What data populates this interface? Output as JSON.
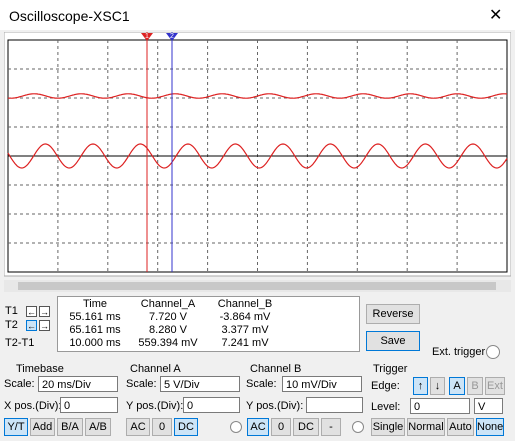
{
  "window": {
    "title": "Oscilloscope-XSC1"
  },
  "cursors": {
    "t1": "1",
    "t2": "2"
  },
  "readout": {
    "headers": [
      "Time",
      "Channel_A",
      "Channel_B"
    ],
    "rows": [
      {
        "label": "T1",
        "time": "55.161 ms",
        "a": "7.720 V",
        "b": "-3.864 mV"
      },
      {
        "label": "T2",
        "time": "65.161 ms",
        "a": "8.280 V",
        "b": "3.377 mV"
      },
      {
        "label": "T2-T1",
        "time": "10.000 ms",
        "a": "559.394 mV",
        "b": "7.241 mV"
      }
    ]
  },
  "buttons": {
    "reverse": "Reverse",
    "save": "Save",
    "ext_trigger": "Ext. trigger"
  },
  "timebase": {
    "title": "Timebase",
    "scale_label": "Scale:",
    "scale": "20 ms/Div",
    "xpos_label": "X pos.(Div):",
    "xpos": "0",
    "modes": [
      "Y/T",
      "Add",
      "B/A",
      "A/B"
    ]
  },
  "channel_a": {
    "title": "Channel A",
    "scale_label": "Scale:",
    "scale": "5 V/Div",
    "ypos_label": "Y pos.(Div):",
    "ypos": "0",
    "coupling": [
      "AC",
      "0",
      "DC"
    ]
  },
  "channel_b": {
    "title": "Channel B",
    "scale_label": "Scale:",
    "scale": "10 mV/Div",
    "ypos_label": "Y pos.(Div):",
    "coupling": [
      "AC",
      "0",
      "DC",
      "-"
    ]
  },
  "trigger": {
    "title": "Trigger",
    "edge_label": "Edge:",
    "sources": [
      "A",
      "B",
      "Ext"
    ],
    "level_label": "Level:",
    "level": "0",
    "level_unit": "V",
    "modes": [
      "Single",
      "Normal",
      "Auto",
      "None"
    ]
  }
}
